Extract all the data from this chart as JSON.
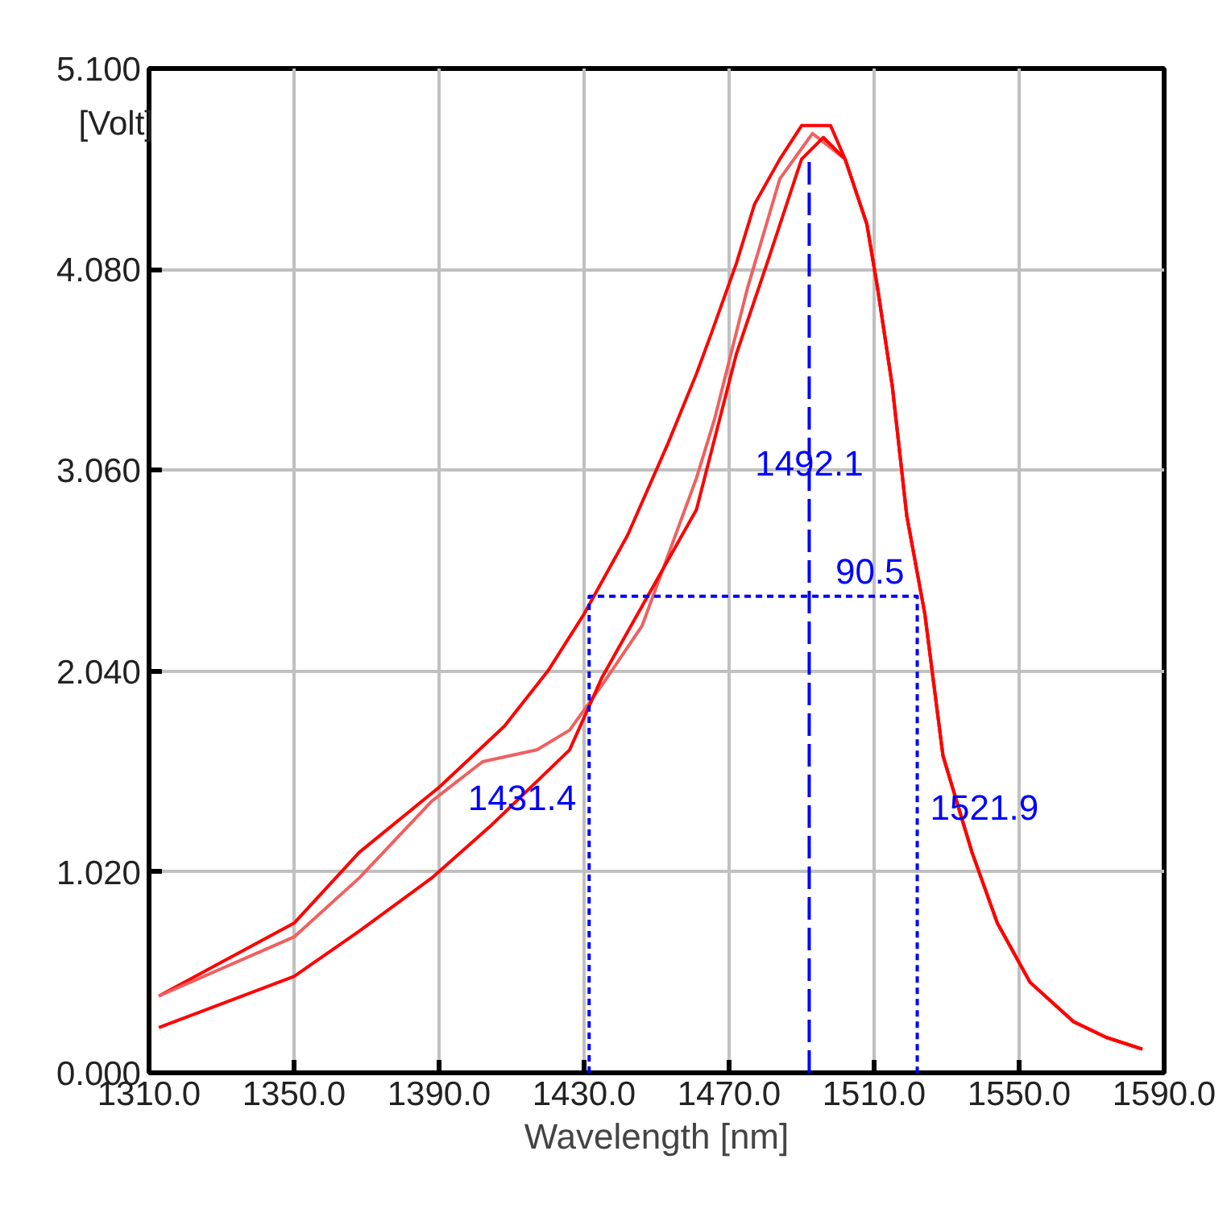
{
  "chart_data": {
    "type": "line",
    "xlabel": "Wavelength [nm]",
    "ylabel": "[Volt]",
    "xlim": [
      1310,
      1590
    ],
    "ylim": [
      0,
      5.1
    ],
    "xticks": [
      {
        "value": 1310,
        "label": "1310.0"
      },
      {
        "value": 1350,
        "label": "1350.0"
      },
      {
        "value": 1390,
        "label": "1390.0"
      },
      {
        "value": 1430,
        "label": "1430.0"
      },
      {
        "value": 1470,
        "label": "1470.0"
      },
      {
        "value": 1510,
        "label": "1510.0"
      },
      {
        "value": 1550,
        "label": "1550.0"
      },
      {
        "value": 1590,
        "label": "1590.0"
      }
    ],
    "yticks": [
      {
        "value": 0,
        "label": "0.000"
      },
      {
        "value": 1.02,
        "label": "1.020"
      },
      {
        "value": 2.04,
        "label": "2.040"
      },
      {
        "value": 3.06,
        "label": "3.060"
      },
      {
        "value": 4.08,
        "label": "4.080"
      },
      {
        "value": 5.1,
        "label": "5.100"
      }
    ],
    "grid": true,
    "marker": "none",
    "series": [
      {
        "color": "#ff0000",
        "line_style": "solid",
        "x": [
          1312.7,
          1350,
          1368,
          1390,
          1408,
          1420,
          1430,
          1442,
          1453,
          1461,
          1465,
          1472,
          1477,
          1484,
          1490,
          1498,
          1502,
          1508,
          1511,
          1515,
          1519,
          1524,
          1529,
          1537,
          1544,
          1553,
          1565,
          1574,
          1584
        ],
        "values": [
          0.39,
          0.76,
          1.12,
          1.45,
          1.76,
          2.04,
          2.33,
          2.73,
          3.19,
          3.55,
          3.75,
          4.11,
          4.41,
          4.64,
          4.81,
          4.81,
          4.64,
          4.31,
          3.98,
          3.49,
          2.83,
          2.33,
          1.61,
          1.12,
          0.76,
          0.46,
          0.26,
          0.18,
          0.12
        ]
      },
      {
        "color": "#f06060",
        "line_style": "solid",
        "x": [
          1312.7,
          1350,
          1368,
          1388,
          1402,
          1417,
          1426,
          1435,
          1446,
          1461,
          1466,
          1475,
          1484,
          1493,
          1502,
          1508,
          1511,
          1515,
          1519,
          1524,
          1529,
          1537,
          1544,
          1553,
          1565,
          1574,
          1584
        ],
        "values": [
          0.39,
          0.69,
          0.99,
          1.38,
          1.58,
          1.64,
          1.74,
          1.97,
          2.27,
          3.02,
          3.32,
          3.98,
          4.54,
          4.77,
          4.64,
          4.31,
          3.98,
          3.49,
          2.83,
          2.33,
          1.61,
          1.12,
          0.76,
          0.46,
          0.26,
          0.18,
          0.12
        ]
      },
      {
        "color": "#ff0000",
        "line_style": "solid",
        "x": [
          1312.7,
          1350,
          1368,
          1388,
          1404,
          1426,
          1435,
          1446,
          1461,
          1472,
          1481,
          1490,
          1496,
          1502,
          1508,
          1511,
          1515,
          1519,
          1524,
          1529,
          1537,
          1544,
          1553,
          1565,
          1574,
          1584
        ],
        "values": [
          0.23,
          0.49,
          0.72,
          0.99,
          1.25,
          1.64,
          2.01,
          2.37,
          2.86,
          3.65,
          4.14,
          4.64,
          4.75,
          4.64,
          4.31,
          3.98,
          3.49,
          2.83,
          2.33,
          1.61,
          1.12,
          0.76,
          0.46,
          0.26,
          0.18,
          0.12
        ]
      },
      {
        "color": "#0000ff",
        "line_style": "dashed",
        "x": [
          1431.4,
          1431.4,
          1521.9,
          1521.9
        ],
        "values": [
          0,
          2.42,
          2.42,
          0
        ]
      },
      {
        "color": "#0000ff",
        "line_style": "dashdot",
        "x": [
          1492.1,
          1492.1
        ],
        "values": [
          0,
          4.65
        ]
      }
    ],
    "annotations": [
      {
        "text": "1431.4",
        "x": 1431.4,
        "y": 1.4
      },
      {
        "text": "1492.1",
        "x": 1492.1,
        "y": 3.1
      },
      {
        "text": "90.5",
        "x": 1521.9,
        "y": 2.55
      },
      {
        "text": "1521.9",
        "x": 1521.9,
        "y": 1.35
      }
    ]
  }
}
